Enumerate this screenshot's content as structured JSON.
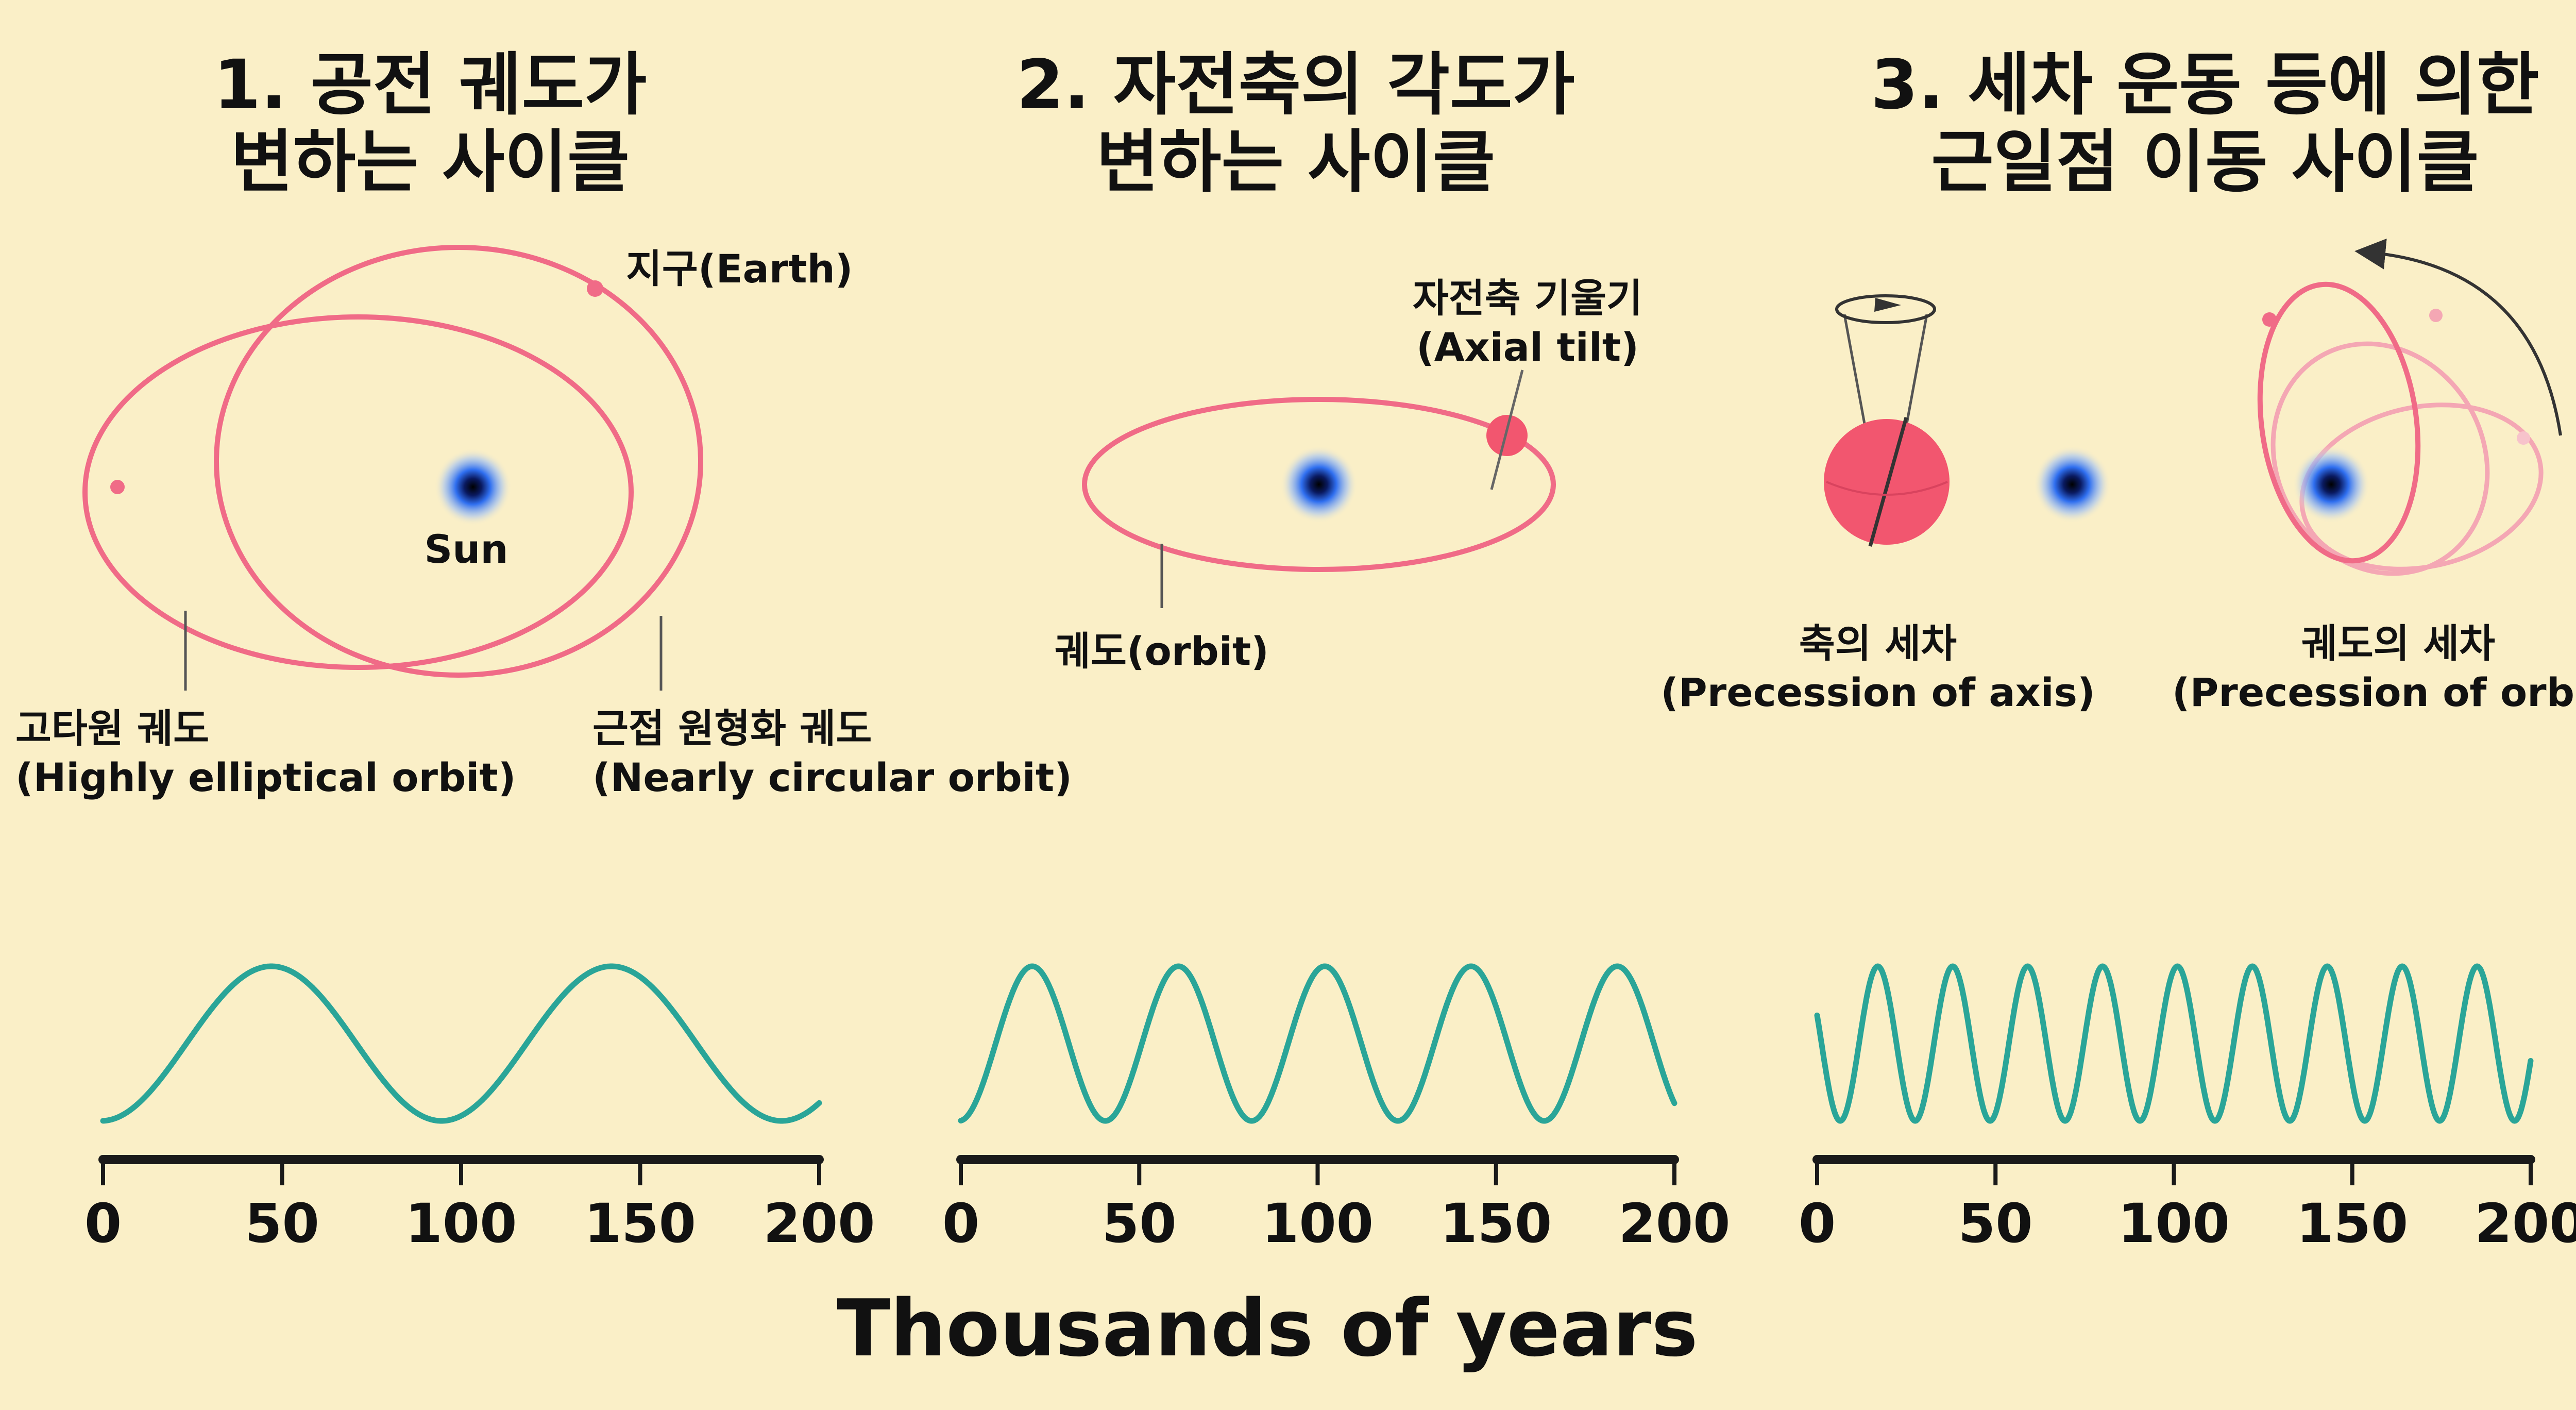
{
  "panels": [
    {
      "title_line1": "1. 공전 궤도가",
      "title_line2": "변하는 사이클",
      "sun_label": "Sun",
      "earth_label": "지구(Earth)",
      "elliptical_ko": "고타원 궤도",
      "elliptical_en": "(Highly elliptical orbit)",
      "circular_ko": "근접 원형화 궤도",
      "circular_en": "(Nearly circular orbit)"
    },
    {
      "title_line1": "2. 자전축의 각도가",
      "title_line2": "변하는 사이클",
      "tilt_ko": "자전축 기울기",
      "tilt_en": "(Axial tilt)",
      "orbit_label": "궤도(orbit)"
    },
    {
      "title_line1": "3. 세차 운동 등에 의한",
      "title_line2": "근일점 이동 사이클",
      "axis_prec_ko": "축의 세차",
      "axis_prec_en": "(Precession of axis)",
      "orbit_prec_ko": "궤도의 세차",
      "orbit_prec_en": "(Precession of orbit)"
    }
  ],
  "axis_title": "Thousands of years",
  "colors": {
    "background": "#faefc7",
    "orbit": "#f06b87",
    "wave": "#2aa598",
    "sun_core": "#000000",
    "sun_glow": "#2f6ff0"
  },
  "chart_data": [
    {
      "type": "line",
      "title": "1. 공전 궤도가 변하는 사이클",
      "xlabel": "Thousands of years",
      "x_ticks": [
        "0",
        "50",
        "100",
        "150",
        "200"
      ],
      "xlim": [
        0,
        200
      ],
      "period_kyr": 95,
      "phase_kyr": 47,
      "ylim": [
        -1,
        1
      ]
    },
    {
      "type": "line",
      "title": "2. 자전축의 각도가 변하는 사이클",
      "xlabel": "Thousands of years",
      "x_ticks": [
        "0",
        "50",
        "100",
        "150",
        "200"
      ],
      "xlim": [
        0,
        200
      ],
      "period_kyr": 41,
      "phase_kyr": 20,
      "ylim": [
        -1,
        1
      ]
    },
    {
      "type": "line",
      "title": "3. 세차 운동 등에 의한 근일점 이동 사이클",
      "xlabel": "Thousands of years",
      "x_ticks": [
        "0",
        "50",
        "100",
        "150",
        "200"
      ],
      "xlim": [
        0,
        200
      ],
      "period_kyr": 21,
      "phase_kyr": 17,
      "ylim": [
        -1,
        1
      ]
    }
  ]
}
